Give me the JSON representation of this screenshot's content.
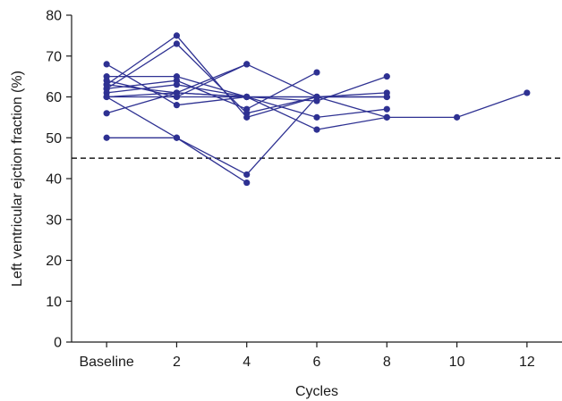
{
  "chart_data": {
    "type": "line",
    "title": "",
    "xlabel": "Cycles",
    "ylabel": "Left ventricular ejction fraction (%)",
    "x_tick_labels": [
      "Baseline",
      "2",
      "4",
      "6",
      "8",
      "10",
      "12"
    ],
    "x_values": [
      0,
      2,
      4,
      6,
      8,
      10,
      12
    ],
    "y_ticks": [
      0,
      10,
      20,
      30,
      40,
      50,
      60,
      70,
      80
    ],
    "ylim": [
      0,
      80
    ],
    "xlim": [
      -1,
      13
    ],
    "reference_line": {
      "y": 45,
      "style": "dashed"
    },
    "grid": false,
    "series_color": "#2e3192",
    "series": [
      {
        "x": [
          0,
          2,
          4,
          6,
          8,
          10,
          12
        ],
        "y": [
          60,
          60,
          60,
          60,
          55,
          55,
          61
        ]
      },
      {
        "x": [
          0,
          2,
          4
        ],
        "y": [
          68,
          58,
          60
        ]
      },
      {
        "x": [
          0,
          2,
          4,
          6,
          8
        ],
        "y": [
          65,
          65,
          60,
          59,
          65
        ]
      },
      {
        "x": [
          0,
          2,
          4
        ],
        "y": [
          64,
          60,
          68
        ]
      },
      {
        "x": [
          0,
          2,
          4,
          6,
          8
        ],
        "y": [
          63,
          75,
          55,
          60,
          61
        ]
      },
      {
        "x": [
          0,
          2,
          4,
          6,
          8
        ],
        "y": [
          62,
          73,
          56,
          60,
          60
        ]
      },
      {
        "x": [
          0,
          2,
          4,
          6
        ],
        "y": [
          62,
          64,
          57,
          66
        ]
      },
      {
        "x": [
          0,
          2,
          4,
          6,
          8
        ],
        "y": [
          61,
          63,
          60,
          52,
          55
        ]
      },
      {
        "x": [
          0,
          2,
          4,
          6,
          8
        ],
        "y": [
          60,
          61,
          60,
          60,
          60
        ]
      },
      {
        "x": [
          0,
          2,
          4,
          6,
          8
        ],
        "y": [
          63,
          61,
          60,
          55,
          57
        ]
      },
      {
        "x": [
          0,
          2,
          4,
          6,
          8
        ],
        "y": [
          56,
          61,
          68,
          60,
          60
        ]
      },
      {
        "x": [
          0,
          2,
          4
        ],
        "y": [
          50,
          50,
          39
        ]
      },
      {
        "x": [
          0,
          2,
          4,
          6
        ],
        "y": [
          60,
          50,
          41,
          60
        ]
      }
    ]
  }
}
